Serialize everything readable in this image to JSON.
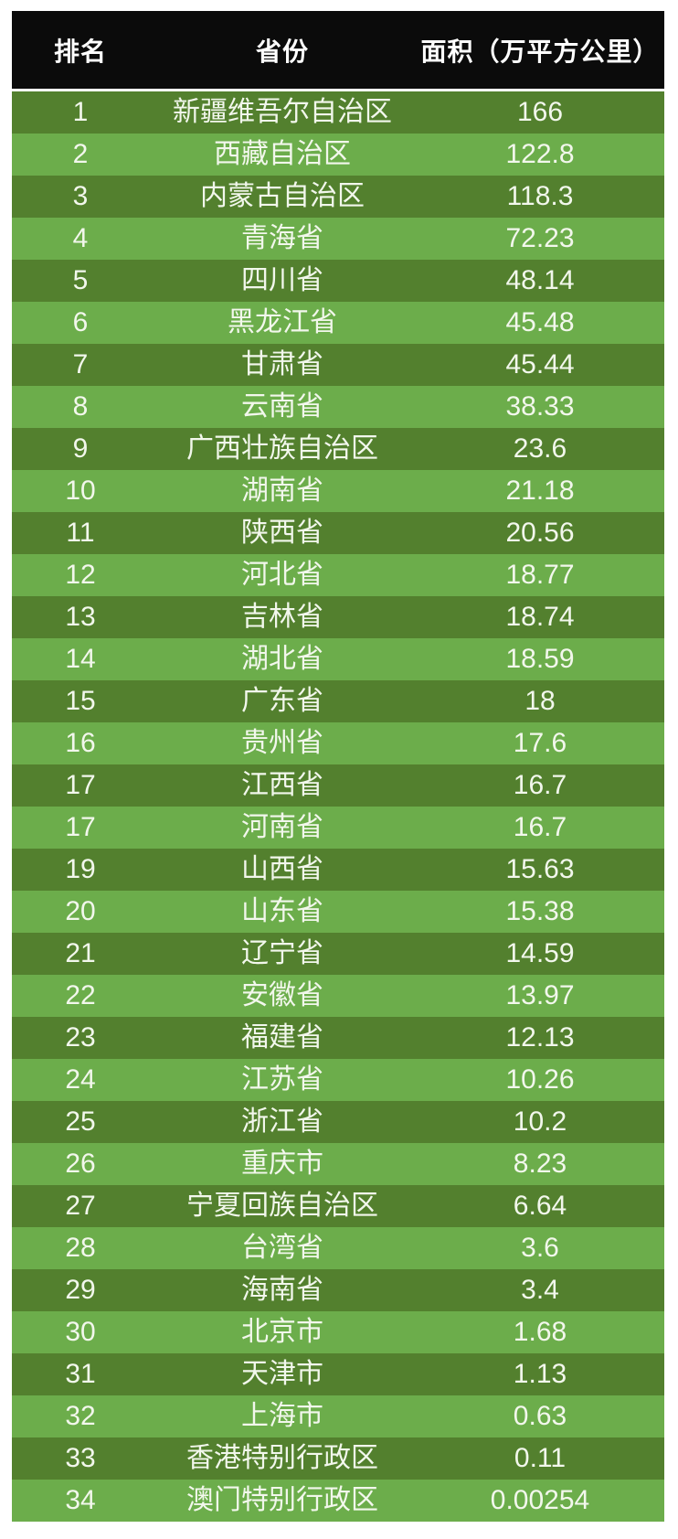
{
  "chart_data": {
    "type": "table",
    "columns": [
      "排名",
      "省份",
      "面积（万平方公里）"
    ],
    "rows": [
      {
        "rank": 1,
        "province": "新疆维吾尔自治区",
        "area": 166
      },
      {
        "rank": 2,
        "province": "西藏自治区",
        "area": 122.8
      },
      {
        "rank": 3,
        "province": "内蒙古自治区",
        "area": 118.3
      },
      {
        "rank": 4,
        "province": "青海省",
        "area": 72.23
      },
      {
        "rank": 5,
        "province": "四川省",
        "area": 48.14
      },
      {
        "rank": 6,
        "province": "黑龙江省",
        "area": 45.48
      },
      {
        "rank": 7,
        "province": "甘肃省",
        "area": 45.44
      },
      {
        "rank": 8,
        "province": "云南省",
        "area": 38.33
      },
      {
        "rank": 9,
        "province": "广西壮族自治区",
        "area": 23.6
      },
      {
        "rank": 10,
        "province": "湖南省",
        "area": 21.18
      },
      {
        "rank": 11,
        "province": "陕西省",
        "area": 20.56
      },
      {
        "rank": 12,
        "province": "河北省",
        "area": 18.77
      },
      {
        "rank": 13,
        "province": "吉林省",
        "area": 18.74
      },
      {
        "rank": 14,
        "province": "湖北省",
        "area": 18.59
      },
      {
        "rank": 15,
        "province": "广东省",
        "area": 18
      },
      {
        "rank": 16,
        "province": "贵州省",
        "area": 17.6
      },
      {
        "rank": 17,
        "province": "江西省",
        "area": 16.7
      },
      {
        "rank": 17,
        "province": "河南省",
        "area": 16.7
      },
      {
        "rank": 19,
        "province": "山西省",
        "area": 15.63
      },
      {
        "rank": 20,
        "province": "山东省",
        "area": 15.38
      },
      {
        "rank": 21,
        "province": "辽宁省",
        "area": 14.59
      },
      {
        "rank": 22,
        "province": "安徽省",
        "area": 13.97
      },
      {
        "rank": 23,
        "province": "福建省",
        "area": 12.13
      },
      {
        "rank": 24,
        "province": "江苏省",
        "area": 10.26
      },
      {
        "rank": 25,
        "province": "浙江省",
        "area": 10.2
      },
      {
        "rank": 26,
        "province": "重庆市",
        "area": 8.23
      },
      {
        "rank": 27,
        "province": "宁夏回族自治区",
        "area": 6.64
      },
      {
        "rank": 28,
        "province": "台湾省",
        "area": 3.6
      },
      {
        "rank": 29,
        "province": "海南省",
        "area": 3.4
      },
      {
        "rank": 30,
        "province": "北京市",
        "area": 1.68
      },
      {
        "rank": 31,
        "province": "天津市",
        "area": 1.13
      },
      {
        "rank": 32,
        "province": "上海市",
        "area": 0.63
      },
      {
        "rank": 33,
        "province": "香港特别行政区",
        "area": 0.11
      },
      {
        "rank": 34,
        "province": "澳门特别行政区",
        "area": 0.00254
      }
    ],
    "layout": {
      "row_striping": "odd-rows-dark",
      "header_position": "top"
    },
    "colors": {
      "header_bg": "#0b0b0b",
      "header_text": "#ffffff",
      "row_dark": "#53802e",
      "row_light": "#6cad4b",
      "row_text": "#f2f7ec",
      "page_bg": "#ffffff"
    }
  }
}
